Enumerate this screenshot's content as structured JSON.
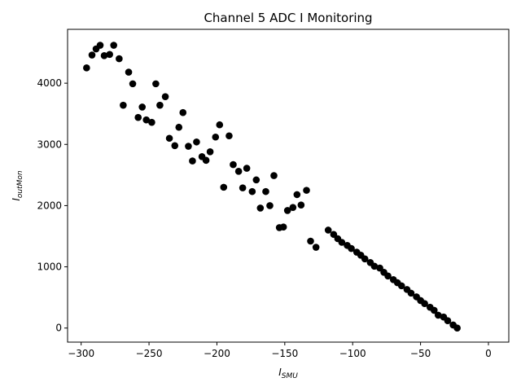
{
  "chart_data": {
    "type": "scatter",
    "title": "Channel 5 ADC I Monitoring",
    "xlabel": {
      "base": "I",
      "sub": "SMU"
    },
    "ylabel": {
      "base": "I",
      "sub": "outMon"
    },
    "xlim": [
      -310,
      15
    ],
    "ylim": [
      -230,
      4880
    ],
    "xticks": [
      -300,
      -250,
      -200,
      -150,
      -100,
      -50,
      0
    ],
    "yticks": [
      0,
      1000,
      2000,
      3000,
      4000
    ],
    "xtick_labels": [
      "−300",
      "−250",
      "−200",
      "−150",
      "−100",
      "−50",
      "0"
    ],
    "ytick_labels": [
      "0",
      "1000",
      "2000",
      "3000",
      "4000"
    ],
    "grid": false,
    "marker_color": "#000000",
    "points": [
      [
        -296,
        4250
      ],
      [
        -292,
        4460
      ],
      [
        -289,
        4560
      ],
      [
        -286,
        4620
      ],
      [
        -283,
        4450
      ],
      [
        -279,
        4470
      ],
      [
        -276,
        4620
      ],
      [
        -272,
        4400
      ],
      [
        -269,
        3640
      ],
      [
        -265,
        4180
      ],
      [
        -262,
        3990
      ],
      [
        -258,
        3440
      ],
      [
        -255,
        3610
      ],
      [
        -252,
        3400
      ],
      [
        -248,
        3360
      ],
      [
        -245,
        3990
      ],
      [
        -242,
        3640
      ],
      [
        -238,
        3780
      ],
      [
        -235,
        3100
      ],
      [
        -231,
        2980
      ],
      [
        -228,
        3280
      ],
      [
        -225,
        3520
      ],
      [
        -221,
        2970
      ],
      [
        -218,
        2730
      ],
      [
        -215,
        3040
      ],
      [
        -211,
        2800
      ],
      [
        -208,
        2740
      ],
      [
        -205,
        2880
      ],
      [
        -201,
        3120
      ],
      [
        -198,
        3320
      ],
      [
        -195,
        2300
      ],
      [
        -191,
        3140
      ],
      [
        -188,
        2670
      ],
      [
        -184,
        2560
      ],
      [
        -181,
        2290
      ],
      [
        -178,
        2610
      ],
      [
        -174,
        2230
      ],
      [
        -171,
        2420
      ],
      [
        -168,
        1960
      ],
      [
        -164,
        2230
      ],
      [
        -161,
        2000
      ],
      [
        -158,
        2490
      ],
      [
        -154,
        1640
      ],
      [
        -151,
        1650
      ],
      [
        -148,
        1920
      ],
      [
        -144,
        1970
      ],
      [
        -141,
        2180
      ],
      [
        -138,
        2010
      ],
      [
        -134,
        2250
      ],
      [
        -131,
        1420
      ],
      [
        -127,
        1320
      ],
      [
        -118,
        1600
      ],
      [
        -114,
        1530
      ],
      [
        -111,
        1460
      ],
      [
        -108,
        1400
      ],
      [
        -104,
        1350
      ],
      [
        -101,
        1300
      ],
      [
        -97,
        1240
      ],
      [
        -94,
        1190
      ],
      [
        -91,
        1130
      ],
      [
        -87,
        1070
      ],
      [
        -84,
        1010
      ],
      [
        -80,
        980
      ],
      [
        -77,
        910
      ],
      [
        -74,
        850
      ],
      [
        -70,
        790
      ],
      [
        -67,
        740
      ],
      [
        -64,
        690
      ],
      [
        -60,
        630
      ],
      [
        -57,
        570
      ],
      [
        -53,
        510
      ],
      [
        -50,
        450
      ],
      [
        -47,
        400
      ],
      [
        -43,
        340
      ],
      [
        -40,
        290
      ],
      [
        -37,
        210
      ],
      [
        -33,
        180
      ],
      [
        -30,
        120
      ],
      [
        -26,
        50
      ],
      [
        -23,
        0
      ]
    ]
  }
}
